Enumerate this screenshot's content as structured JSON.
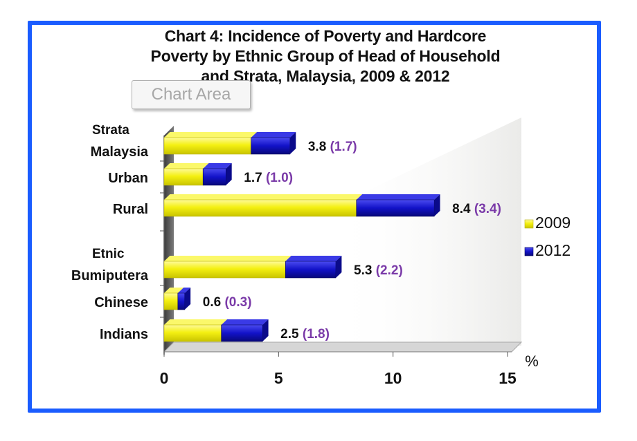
{
  "chart_data": {
    "type": "bar",
    "orientation": "horizontal",
    "stacked": true,
    "title_lines": [
      "Chart 4: Incidence of Poverty and Hardcore",
      "Poverty by Ethnic Group of Head of Household",
      "and Strata, Malaysia, 2009 & 2012"
    ],
    "groups": [
      {
        "label_lines": [
          "Strata",
          "Malaysia"
        ],
        "v2009": 3.8,
        "v2012": 1.7
      },
      {
        "label_lines": [
          "Urban"
        ],
        "v2009": 1.7,
        "v2012": 1.0
      },
      {
        "label_lines": [
          "Rural"
        ],
        "v2009": 8.4,
        "v2012": 3.4
      },
      {
        "label_lines": [
          "Etnic",
          "Bumiputera"
        ],
        "v2009": 5.3,
        "v2012": 2.2
      },
      {
        "label_lines": [
          "Chinese"
        ],
        "v2009": 0.6,
        "v2012": 0.3
      },
      {
        "label_lines": [
          "Indians"
        ],
        "v2009": 2.5,
        "v2012": 1.8
      }
    ],
    "data_labels": [
      {
        "a": "3.8",
        "b": "(1.7)"
      },
      {
        "a": "1.7",
        "b": "(1.0)"
      },
      {
        "a": "8.4",
        "b": "(3.4)"
      },
      {
        "a": "5.3",
        "b": "(2.2)"
      },
      {
        "a": "0.6",
        "b": "(0.3)"
      },
      {
        "a": "2.5",
        "b": "(1.8)"
      }
    ],
    "series": [
      {
        "name": "2009",
        "color": "#f2ee10"
      },
      {
        "name": "2012",
        "color": "#1010c8"
      }
    ],
    "xlim": [
      0,
      15
    ],
    "x_ticks": [
      "0",
      "5",
      "10",
      "15"
    ],
    "x_unit": "%",
    "legend_position": "right",
    "label_color_2012": "#7a3aa8"
  },
  "overlay": {
    "chart_area_label": "Chart Area"
  }
}
